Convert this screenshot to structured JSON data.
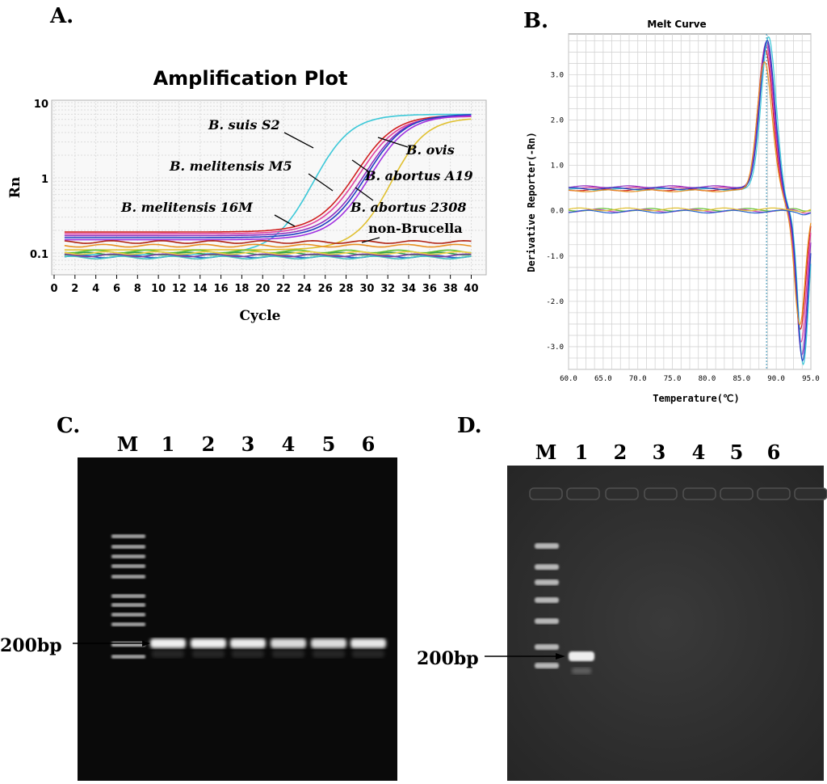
{
  "chart_data": [
    {
      "panel": "A.",
      "type": "line",
      "title": "Amplification Plot",
      "xlabel": "Cycle",
      "ylabel": "Rn",
      "yscale": "log",
      "xlim": [
        0,
        40
      ],
      "ylim": [
        0.055,
        10
      ],
      "xticks": [
        "0",
        "2",
        "4",
        "6",
        "8",
        "10",
        "12",
        "14",
        "16",
        "18",
        "20",
        "22",
        "24",
        "26",
        "28",
        "30",
        "32",
        "34",
        "36",
        "38",
        "40"
      ],
      "yticks": [
        {
          "value": 10,
          "label": "10"
        },
        {
          "value": 1,
          "label": "1"
        },
        {
          "value": 0.1,
          "label": "0.1"
        }
      ],
      "grid": true,
      "series": [
        {
          "name": "B. suis S2",
          "color": "#3cc8d8",
          "baseline": 0.095,
          "plateau": 7.0,
          "midpoint": 25.0,
          "steepness": 0.55
        },
        {
          "name": "B. melitensis M5",
          "color": "#d02020",
          "baseline": 0.19,
          "plateau": 6.8,
          "midpoint": 29.2,
          "steepness": 0.55
        },
        {
          "name": "B. melitensis M5",
          "color": "#e040a0",
          "baseline": 0.18,
          "plateau": 6.6,
          "midpoint": 29.5,
          "steepness": 0.55
        },
        {
          "name": "B. melitensis 16M",
          "color": "#9030c0",
          "baseline": 0.17,
          "plateau": 6.9,
          "midpoint": 30.0,
          "steepness": 0.55
        },
        {
          "name": "B. abortus A19",
          "color": "#2040c0",
          "baseline": 0.16,
          "plateau": 7.0,
          "midpoint": 30.2,
          "steepness": 0.55
        },
        {
          "name": "B. abortus 2308",
          "color": "#a030e0",
          "baseline": 0.15,
          "plateau": 6.8,
          "midpoint": 30.5,
          "steepness": 0.55
        },
        {
          "name": "B. ovis",
          "color": "#e0c030",
          "baseline": 0.11,
          "plateau": 6.3,
          "midpoint": 32.5,
          "steepness": 0.6
        },
        {
          "name": "non-Brucella",
          "color": "#b02010",
          "baseline": 0.14,
          "plateau": 0.14
        },
        {
          "name": "non-Brucella",
          "color": "#e89020",
          "baseline": 0.125,
          "plateau": 0.125
        },
        {
          "name": "non-Brucella",
          "color": "#60c030",
          "baseline": 0.105,
          "plateau": 0.105
        },
        {
          "name": "non-Brucella",
          "color": "#30a050",
          "baseline": 0.098,
          "plateau": 0.098
        },
        {
          "name": "non-Brucella",
          "color": "#2060d0",
          "baseline": 0.09,
          "plateau": 0.09
        },
        {
          "name": "non-Brucella",
          "color": "#40c0c0",
          "baseline": 0.087,
          "plateau": 0.087
        },
        {
          "name": "non-Brucella",
          "color": "#8040a0",
          "baseline": 0.093,
          "plateau": 0.093
        },
        {
          "name": "non-Brucella",
          "color": "#f0d040",
          "baseline": 0.1,
          "plateau": 0.1
        }
      ],
      "annotations": [
        {
          "text": "B. suis S2",
          "italic": true
        },
        {
          "text": "B. melitensis M5",
          "italic": true
        },
        {
          "text": "B. melitensis 16M",
          "italic": true
        },
        {
          "text": "B. ovis",
          "italic": true
        },
        {
          "text": "B. abortus A19",
          "italic": true
        },
        {
          "text": "B. abortus 2308",
          "italic": true
        },
        {
          "text": "non-Brucella",
          "italic": false
        }
      ]
    },
    {
      "panel": "B.",
      "type": "line",
      "title": "Melt Curve",
      "xlabel": "Temperature(℃)",
      "ylabel": "Derivative Reporter(-Rn)",
      "xlim": [
        60,
        95
      ],
      "ylim": [
        -3.5,
        3.9
      ],
      "xticks": [
        "60.0",
        "65.0",
        "70.0",
        "75.0",
        "80.0",
        "85.0",
        "90.0",
        "95.0"
      ],
      "yticks": [
        "3.0",
        "2.0",
        "1.0",
        "0.0",
        "-1.0",
        "-2.0",
        "-3.0"
      ],
      "grid": true,
      "threshold_temperature": 88.6,
      "series": [
        {
          "color": "#d02020",
          "baseline": 0.46,
          "peak_temp": 88.4,
          "peak": 3.55,
          "trough_temp": 93.5,
          "trough": -2.6
        },
        {
          "color": "#e040a0",
          "baseline": 0.5,
          "peak_temp": 88.5,
          "peak": 3.65,
          "trough_temp": 93.6,
          "trough": -2.9
        },
        {
          "color": "#9030c0",
          "baseline": 0.53,
          "peak_temp": 88.6,
          "peak": 3.72,
          "trough_temp": 93.7,
          "trough": -3.2
        },
        {
          "color": "#3cc8d8",
          "baseline": 0.47,
          "peak_temp": 88.9,
          "peak": 3.85,
          "trough_temp": 93.9,
          "trough": -3.4
        },
        {
          "color": "#2040c0",
          "baseline": 0.49,
          "peak_temp": 88.7,
          "peak": 3.78,
          "trough_temp": 93.8,
          "trough": -3.3
        },
        {
          "color": "#e89020",
          "baseline": 0.44,
          "peak_temp": 88.3,
          "peak": 3.3,
          "trough_temp": 93.4,
          "trough": -2.5
        },
        {
          "color": "#60c030",
          "baseline": 0.02,
          "flat": true
        },
        {
          "color": "#c040c0",
          "baseline": 0.0,
          "flat": true
        },
        {
          "color": "#2060d0",
          "baseline": -0.02,
          "flat": true
        },
        {
          "color": "#e0c030",
          "baseline": 0.03,
          "flat": true
        }
      ]
    }
  ],
  "gels": {
    "c": {
      "panel": "C.",
      "lanes": [
        "M",
        "1",
        "2",
        "3",
        "4",
        "5",
        "6"
      ],
      "marker_label": "200bp",
      "band_intensity": [
        0.9,
        0.9,
        0.85,
        0.7,
        0.72,
        0.82
      ]
    },
    "d": {
      "panel": "D.",
      "lanes": [
        "M",
        "1",
        "2",
        "3",
        "4",
        "5",
        "6"
      ],
      "marker_label": "200bp",
      "band_intensity": [
        1.0,
        0,
        0,
        0,
        0,
        0
      ]
    }
  }
}
